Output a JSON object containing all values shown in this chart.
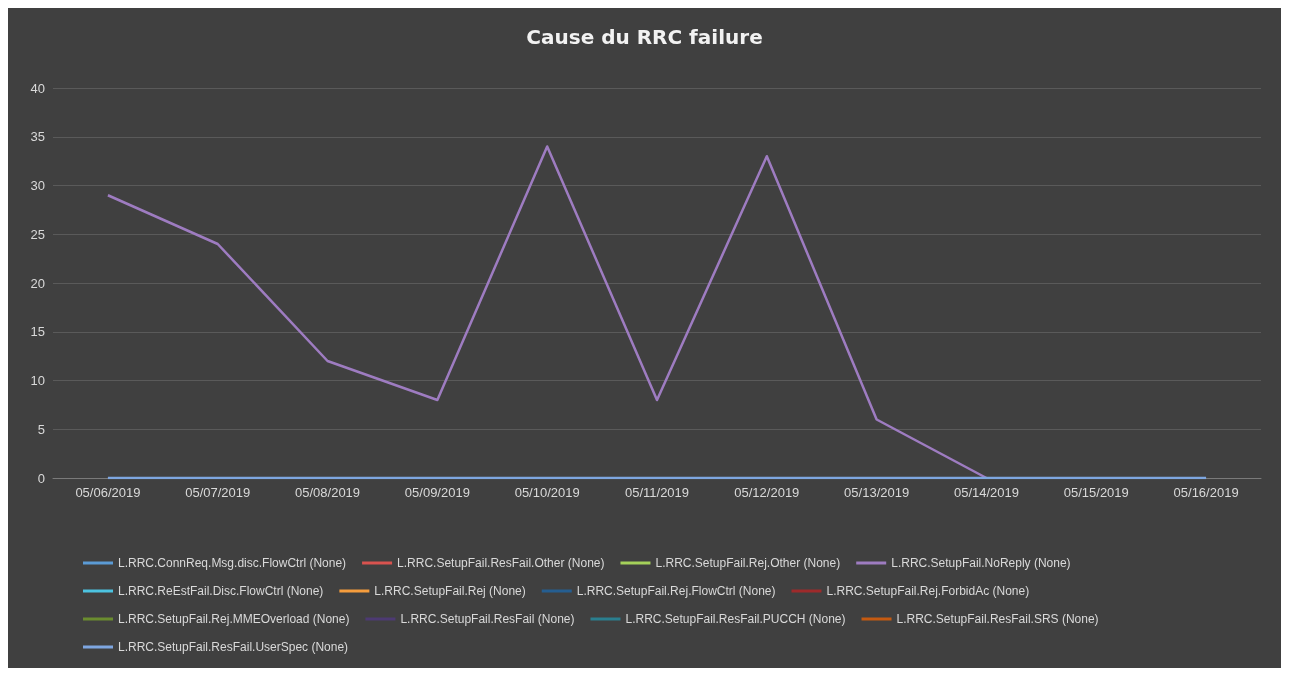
{
  "chart_data": {
    "type": "line",
    "title": "Cause du RRC failure",
    "categories": [
      "05/06/2019",
      "05/07/2019",
      "05/08/2019",
      "05/09/2019",
      "05/10/2019",
      "05/11/2019",
      "05/12/2019",
      "05/13/2019",
      "05/14/2019",
      "05/15/2019",
      "05/16/2019"
    ],
    "ylim": [
      0,
      40
    ],
    "yticks": [
      0,
      5,
      10,
      15,
      20,
      25,
      30,
      35,
      40
    ],
    "grid": "y",
    "legend": "bottom",
    "marker": "none",
    "line_style": "solid",
    "series": [
      {
        "name": "L.RRC.ConnReq.Msg.disc.FlowCtrl (None)",
        "color": "#5b9bd5",
        "values": [
          null,
          null,
          null,
          null,
          null,
          null,
          null,
          null,
          null,
          null,
          null
        ]
      },
      {
        "name": "L.RRC.SetupFail.ResFail.Other (None)",
        "color": "#d9534f",
        "values": [
          null,
          null,
          null,
          null,
          null,
          null,
          null,
          null,
          null,
          null,
          null
        ]
      },
      {
        "name": "L.RRC.SetupFail.Rej.Other (None)",
        "color": "#a5d15a",
        "values": [
          null,
          null,
          null,
          null,
          null,
          null,
          null,
          null,
          null,
          null,
          null
        ]
      },
      {
        "name": "L.RRC.SetupFail.NoReply (None)",
        "color": "#9e7cc1",
        "values": [
          29,
          24,
          12,
          8,
          34,
          8,
          33,
          6,
          0,
          null,
          null
        ]
      },
      {
        "name": "L.RRC.ReEstFail.Disc.FlowCtrl (None)",
        "color": "#4cc3e0",
        "values": [
          null,
          null,
          null,
          null,
          null,
          null,
          null,
          null,
          null,
          null,
          null
        ]
      },
      {
        "name": "L.RRC.SetupFail.Rej (None)",
        "color": "#f59d3d",
        "values": [
          null,
          null,
          null,
          null,
          null,
          null,
          null,
          null,
          null,
          null,
          null
        ]
      },
      {
        "name": "L.RRC.SetupFail.Rej.FlowCtrl (None)",
        "color": "#255e91",
        "values": [
          null,
          null,
          null,
          null,
          null,
          null,
          null,
          null,
          null,
          null,
          null
        ]
      },
      {
        "name": "L.RRC.SetupFail.Rej.ForbidAc (None)",
        "color": "#9e2a2b",
        "values": [
          null,
          null,
          null,
          null,
          null,
          null,
          null,
          null,
          null,
          null,
          null
        ]
      },
      {
        "name": "L.RRC.SetupFail.Rej.MMEOverload (None)",
        "color": "#6a8c2f",
        "values": [
          null,
          null,
          null,
          null,
          null,
          null,
          null,
          null,
          null,
          null,
          null
        ]
      },
      {
        "name": "L.RRC.SetupFail.ResFail (None)",
        "color": "#4d3a73",
        "values": [
          null,
          null,
          null,
          null,
          null,
          null,
          null,
          null,
          null,
          null,
          null
        ]
      },
      {
        "name": "L.RRC.SetupFail.ResFail.PUCCH (None)",
        "color": "#2a7f8f",
        "values": [
          null,
          null,
          null,
          null,
          null,
          null,
          null,
          null,
          null,
          null,
          null
        ]
      },
      {
        "name": "L.RRC.SetupFail.ResFail.SRS (None)",
        "color": "#c55a11",
        "values": [
          null,
          null,
          null,
          null,
          null,
          null,
          null,
          null,
          null,
          null,
          null
        ]
      },
      {
        "name": "L.RRC.SetupFail.ResFail.UserSpec (None)",
        "color": "#7ea6e0",
        "values": [
          0,
          0,
          0,
          0,
          0,
          0,
          0,
          0,
          0,
          0,
          0
        ]
      }
    ]
  }
}
